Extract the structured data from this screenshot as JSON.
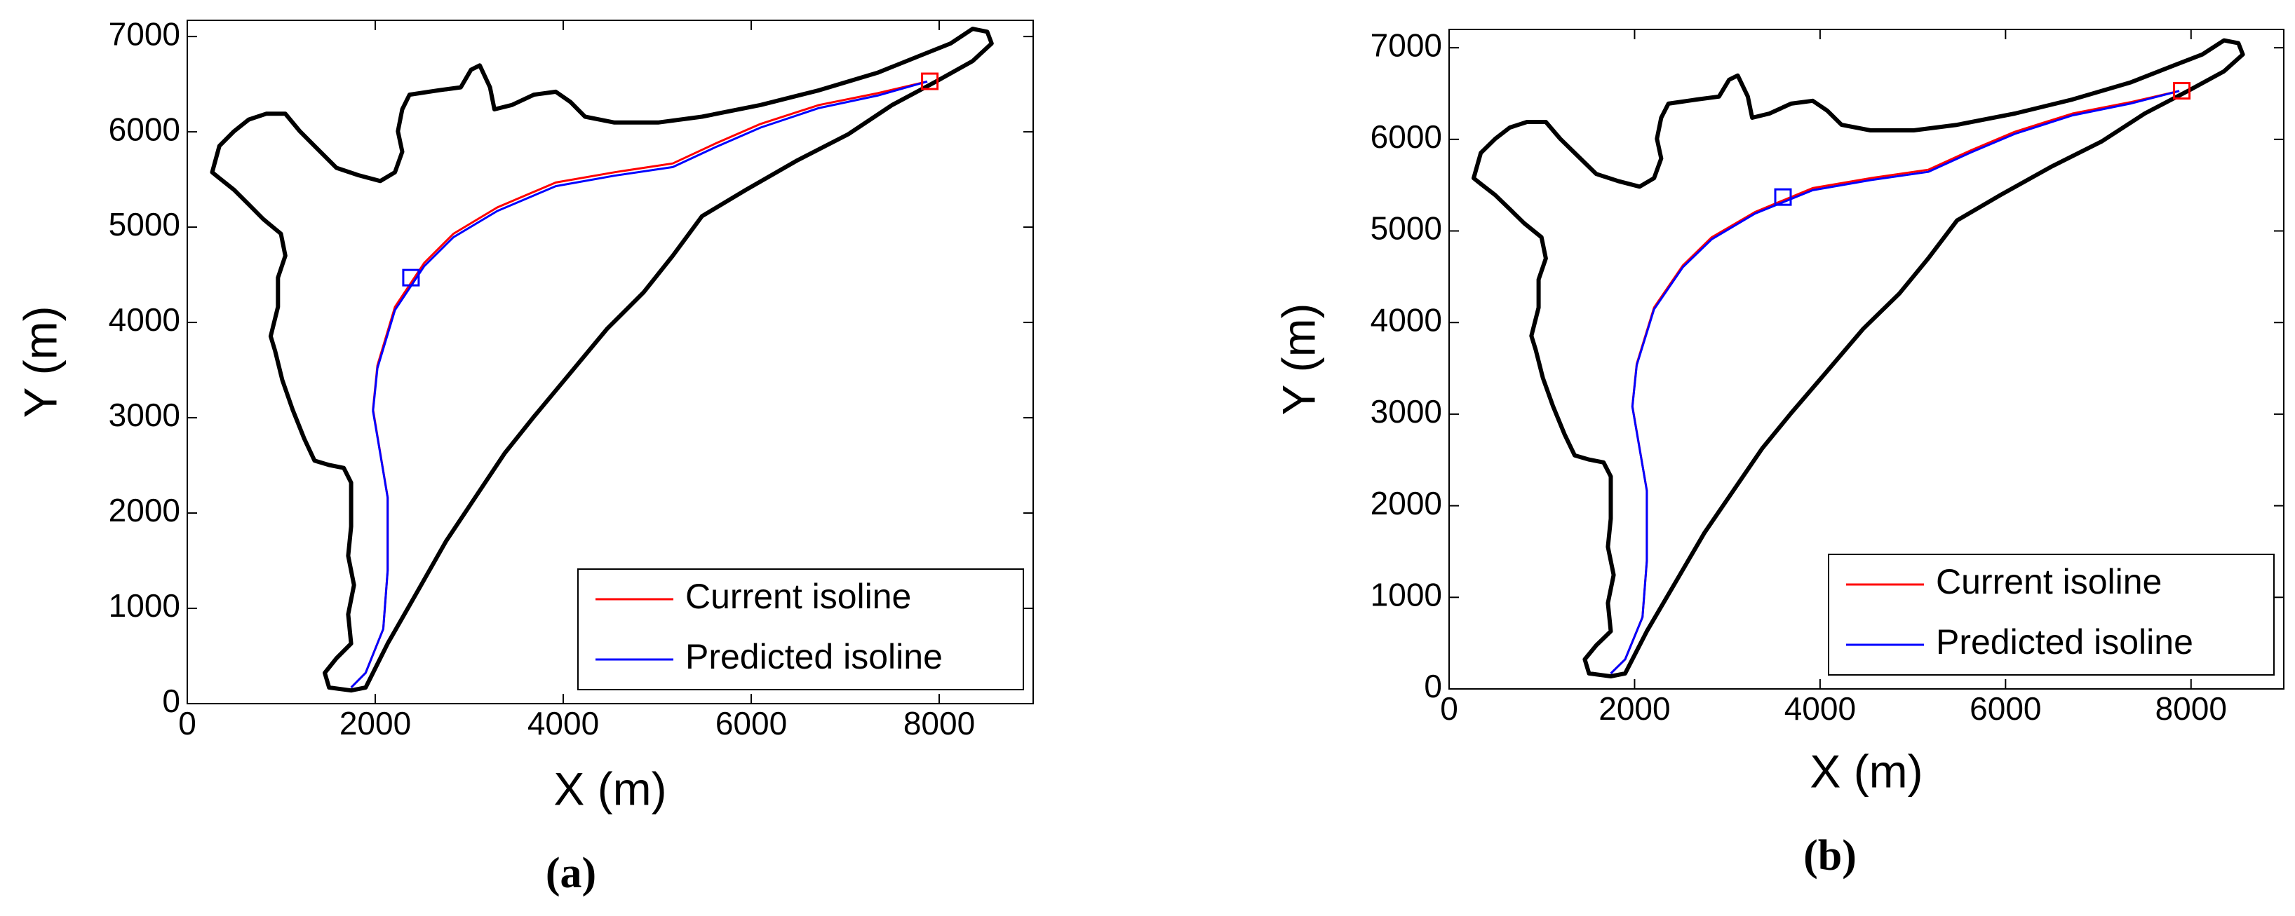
{
  "chart_data": [
    {
      "type": "line",
      "caption": "(a)",
      "xlabel": "X (m)",
      "ylabel": "Y (m)",
      "xlim": [
        0,
        9000
      ],
      "ylim": [
        0,
        7170
      ],
      "xticks": [
        0,
        2000,
        4000,
        6000,
        8000
      ],
      "yticks": [
        0,
        1000,
        2000,
        3000,
        4000,
        5000,
        6000,
        7000
      ],
      "legend": "lower right",
      "series": [
        {
          "color": "#000000",
          "closed": true,
          "x": [
            1509,
            1463,
            1587,
            1743,
            1712,
            1774,
            1712,
            1743,
            1743,
            1665,
            1509,
            1354,
            1245,
            1120,
            1011,
            934,
            887,
            965,
            965,
            1043,
            996,
            809,
            654,
            498,
            342,
            265,
            342,
            498,
            654,
            840,
            1043,
            1198,
            1354,
            1587,
            1821,
            2054,
            2210,
            2287,
            2241,
            2287,
            2365,
            2676,
            2910,
            3019,
            3112,
            3221,
            3268,
            3454,
            3688,
            3921,
            4077,
            4232,
            4544,
            5010,
            5477,
            6100,
            6722,
            7344,
            7811,
            8122,
            8356,
            8511,
            8558,
            8356,
            7967,
            7500,
            7033,
            6488,
            5944,
            5477,
            5166,
            4855,
            4466,
            4077,
            3688,
            3377,
            3065,
            2754,
            2443,
            2132,
            1898,
            1743
          ],
          "values": [
            169,
            323,
            476,
            630,
            937,
            1244,
            1551,
            1859,
            2319,
            2473,
            2504,
            2550,
            2780,
            3087,
            3395,
            3702,
            3855,
            4163,
            4470,
            4700,
            4931,
            5084,
            5238,
            5391,
            5514,
            5576,
            5852,
            6006,
            6129,
            6190,
            6190,
            6006,
            5852,
            5622,
            5545,
            5484,
            5576,
            5791,
            6006,
            6236,
            6390,
            6436,
            6467,
            6651,
            6697,
            6467,
            6236,
            6282,
            6390,
            6421,
            6313,
            6159,
            6098,
            6098,
            6159,
            6282,
            6436,
            6620,
            6805,
            6927,
            7081,
            7050,
            6927,
            6743,
            6528,
            6282,
            5975,
            5699,
            5391,
            5115,
            4700,
            4316,
            3932,
            3471,
            3011,
            2627,
            2166,
            1705,
            1167,
            630,
            169,
            138
          ]
        },
        {
          "name": "Current isoline",
          "color": "#ff0000",
          "x": [
            7873,
            7344,
            6722,
            6100,
            5633,
            5166,
            4544,
            3921,
            3299,
            2832,
            2521,
            2210,
            2023,
            1976,
            2054,
            2132,
            2132,
            2085,
            1898,
            1743
          ],
          "values": [
            6528,
            6405,
            6282,
            6083,
            5883,
            5668,
            5576,
            5468,
            5207,
            4931,
            4624,
            4163,
            3548,
            3087,
            2627,
            2166,
            1398,
            783,
            323,
            169
          ]
        },
        {
          "name": "Predicted isoline",
          "color": "#0000ff",
          "x": [
            7873,
            7344,
            6722,
            6100,
            5633,
            5166,
            4544,
            3921,
            3299,
            2832,
            2521,
            2210,
            2023,
            1976,
            2054,
            2132,
            2132,
            2085,
            1898,
            1743
          ],
          "values": [
            6528,
            6380,
            6250,
            6045,
            5845,
            5630,
            5540,
            5430,
            5170,
            4895,
            4590,
            4130,
            3520,
            3070,
            2620,
            2160,
            1398,
            783,
            323,
            169
          ]
        }
      ],
      "markers": [
        {
          "x": 7900,
          "y": 6530,
          "color": "#ff0000"
        },
        {
          "x": 2380,
          "y": 4470,
          "color": "#0000ff"
        }
      ]
    },
    {
      "type": "line",
      "caption": "(b)",
      "xlabel": "X (m)",
      "ylabel": "Y (m)",
      "xlim": [
        0,
        9000
      ],
      "ylim": [
        0,
        7200
      ],
      "xticks": [
        0,
        2000,
        4000,
        6000,
        8000
      ],
      "yticks": [
        0,
        1000,
        2000,
        3000,
        4000,
        5000,
        6000,
        7000
      ],
      "legend": "lower right",
      "series": [
        {
          "color": "#000000",
          "closed": true,
          "x": [
            1509,
            1463,
            1587,
            1743,
            1712,
            1774,
            1712,
            1743,
            1743,
            1665,
            1509,
            1354,
            1245,
            1120,
            1011,
            934,
            887,
            965,
            965,
            1043,
            996,
            809,
            654,
            498,
            342,
            265,
            342,
            498,
            654,
            840,
            1043,
            1198,
            1354,
            1587,
            1821,
            2054,
            2210,
            2287,
            2241,
            2287,
            2365,
            2676,
            2910,
            3019,
            3112,
            3221,
            3268,
            3454,
            3688,
            3921,
            4077,
            4232,
            4544,
            5010,
            5477,
            6100,
            6722,
            7344,
            7811,
            8122,
            8356,
            8511,
            8558,
            8356,
            7967,
            7500,
            7033,
            6488,
            5944,
            5477,
            5166,
            4855,
            4466,
            4077,
            3688,
            3377,
            3065,
            2754,
            2443,
            2132,
            1898,
            1743
          ],
          "values": [
            169,
            323,
            476,
            630,
            937,
            1244,
            1551,
            1859,
            2319,
            2473,
            2504,
            2550,
            2780,
            3087,
            3395,
            3702,
            3855,
            4163,
            4470,
            4700,
            4931,
            5084,
            5238,
            5391,
            5514,
            5576,
            5852,
            6006,
            6129,
            6190,
            6190,
            6006,
            5852,
            5622,
            5545,
            5484,
            5576,
            5791,
            6006,
            6236,
            6390,
            6436,
            6467,
            6651,
            6697,
            6467,
            6236,
            6282,
            6390,
            6421,
            6313,
            6159,
            6098,
            6098,
            6159,
            6282,
            6436,
            6620,
            6805,
            6927,
            7081,
            7050,
            6927,
            6743,
            6528,
            6282,
            5975,
            5699,
            5391,
            5115,
            4700,
            4316,
            3932,
            3471,
            3011,
            2627,
            2166,
            1705,
            1167,
            630,
            169,
            138
          ]
        },
        {
          "name": "Current isoline",
          "color": "#ff0000",
          "x": [
            7873,
            7344,
            6722,
            6100,
            5633,
            5166,
            4544,
            3921,
            3299,
            2832,
            2521,
            2210,
            2023,
            1976,
            2054,
            2132,
            2132,
            2085,
            1898,
            1743
          ],
          "values": [
            6528,
            6405,
            6282,
            6083,
            5883,
            5668,
            5576,
            5468,
            5207,
            4931,
            4624,
            4163,
            3548,
            3087,
            2627,
            2166,
            1398,
            783,
            323,
            169
          ]
        },
        {
          "name": "Predicted isoline",
          "color": "#0000ff",
          "x": [
            7873,
            7344,
            6722,
            6100,
            5633,
            5166,
            4544,
            3921,
            3299,
            2832,
            2521,
            2210,
            2023,
            1976,
            2054,
            2132,
            2132,
            2085,
            1898,
            1743
          ],
          "values": [
            6528,
            6390,
            6262,
            6060,
            5860,
            5645,
            5555,
            5445,
            5190,
            4910,
            4605,
            4145,
            3535,
            3080,
            2622,
            2163,
            1398,
            783,
            323,
            169
          ]
        }
      ],
      "markers": [
        {
          "x": 7900,
          "y": 6530,
          "color": "#ff0000"
        },
        {
          "x": 3600,
          "y": 5370,
          "color": "#0000ff"
        }
      ]
    }
  ]
}
